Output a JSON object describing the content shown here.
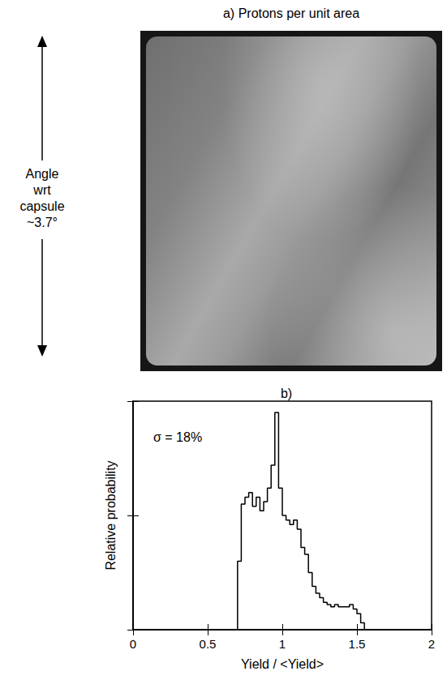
{
  "chart_data": {
    "type": "histogram",
    "title": "b)",
    "annotation": "σ = 18%",
    "xlabel": "Yield / <Yield>",
    "ylabel": "Relative probability",
    "bins": [
      0.7,
      0.725,
      0.75,
      0.775,
      0.8,
      0.825,
      0.85,
      0.875,
      0.9,
      0.925,
      0.95,
      0.975,
      1,
      1.025,
      1.05,
      1.075,
      1.1,
      1.125,
      1.15,
      1.175,
      1.2,
      1.225,
      1.25,
      1.275,
      1.3,
      1.325,
      1.35,
      1.375,
      1.4,
      1.425,
      1.45,
      1.475,
      1.5,
      1.525,
      1.55
    ],
    "counts": [
      0.3,
      0.55,
      0.58,
      0.6,
      0.54,
      0.58,
      0.52,
      0.56,
      0.62,
      0.72,
      0.95,
      0.62,
      0.5,
      0.48,
      0.46,
      0.48,
      0.44,
      0.36,
      0.33,
      0.25,
      0.19,
      0.16,
      0.14,
      0.12,
      0.11,
      0.1,
      0.11,
      0.1,
      0.1,
      0.1,
      0.11,
      0.09,
      0.07,
      0.03
    ],
    "color": "#000000",
    "xlim": [
      0,
      2
    ],
    "xticks": [
      0,
      0.5,
      1,
      1.5,
      2
    ],
    "ylim": [
      0,
      1
    ],
    "yticks": [
      0,
      0.5,
      1
    ],
    "tick_labels": "x",
    "grid": false
  },
  "image_panel": {
    "title": "a) Protons per unit area",
    "axis_label": "Angle wrt capsule ~3.7°"
  }
}
